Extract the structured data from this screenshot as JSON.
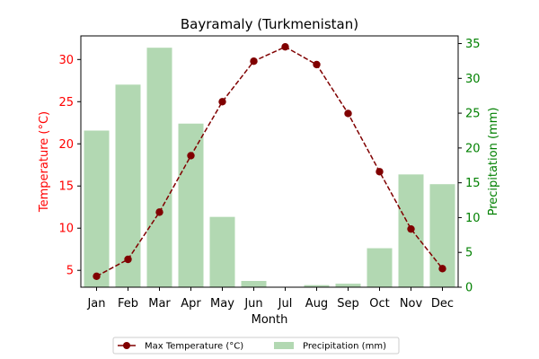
{
  "chart_data": {
    "type": "bar+line",
    "title": "Bayramaly (Turkmenistan)",
    "xlabel": "Month",
    "categories": [
      "Jan",
      "Feb",
      "Mar",
      "Apr",
      "May",
      "Jun",
      "Jul",
      "Aug",
      "Sep",
      "Oct",
      "Nov",
      "Dec"
    ],
    "series": [
      {
        "name": "Max Temperature (°C)",
        "type": "line",
        "axis": "left",
        "color": "#800000",
        "values": [
          4.3,
          6.3,
          11.9,
          18.6,
          25.0,
          29.8,
          31.5,
          29.4,
          23.6,
          16.7,
          9.9,
          5.2
        ]
      },
      {
        "name": "Precipitation (mm)",
        "type": "bar",
        "axis": "right",
        "color": "#b2d8b2",
        "values": [
          22.5,
          29.1,
          34.4,
          23.5,
          10.1,
          0.9,
          0.0,
          0.3,
          0.5,
          5.6,
          16.2,
          14.8
        ]
      }
    ],
    "y_left": {
      "label": "Temperature (°C)",
      "color": "#ff0000",
      "ylim": [
        3.0,
        32.8
      ],
      "ticks": [
        5,
        10,
        15,
        20,
        25,
        30
      ]
    },
    "y_right": {
      "label": "Precipitation (mm)",
      "color": "#008000",
      "ylim": [
        0,
        36.1
      ],
      "ticks": [
        0,
        5,
        10,
        15,
        20,
        25,
        30,
        35
      ]
    },
    "grid": false,
    "legend_position": "bottom-center"
  }
}
